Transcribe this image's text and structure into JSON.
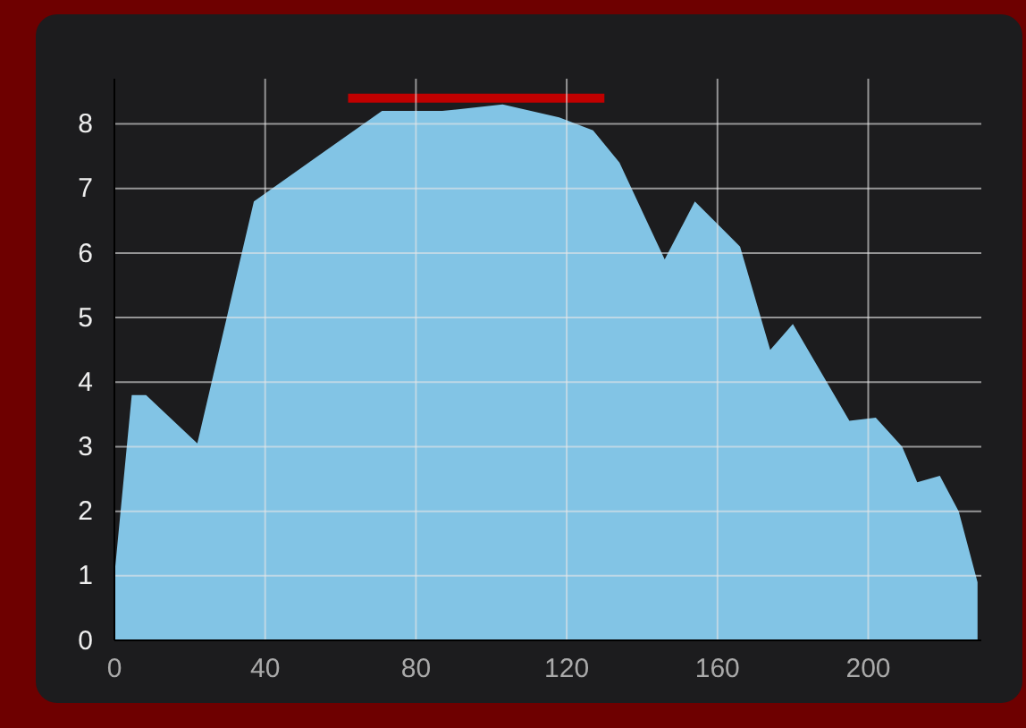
{
  "chart_data": {
    "type": "area",
    "x": [
      0,
      4.6,
      8.4,
      22,
      37,
      54,
      71,
      87,
      103,
      118,
      127,
      134,
      146,
      154,
      166,
      174,
      180,
      195,
      202,
      209,
      213,
      219,
      224,
      229
    ],
    "series": [
      {
        "color": "#82c4e5",
        "values": [
          1.0,
          3.8,
          3.8,
          3.05,
          6.8,
          7.5,
          8.2,
          8.2,
          8.3,
          8.1,
          7.9,
          7.4,
          5.9,
          6.8,
          6.1,
          4.5,
          4.9,
          3.4,
          3.45,
          3.0,
          2.45,
          2.55,
          2.0,
          0.9
        ]
      },
      {
        "type": "line",
        "color": "#c00000",
        "x": [
          62,
          130
        ],
        "values": [
          8.4,
          8.4
        ]
      }
    ],
    "xlim": [
      0,
      230
    ],
    "xticks": [
      0,
      40,
      80,
      120,
      160,
      200
    ],
    "ylim": [
      0,
      8.7
    ],
    "yticks": [
      0,
      1,
      2,
      3,
      4,
      5,
      6,
      7,
      8
    ],
    "grid": true
  }
}
